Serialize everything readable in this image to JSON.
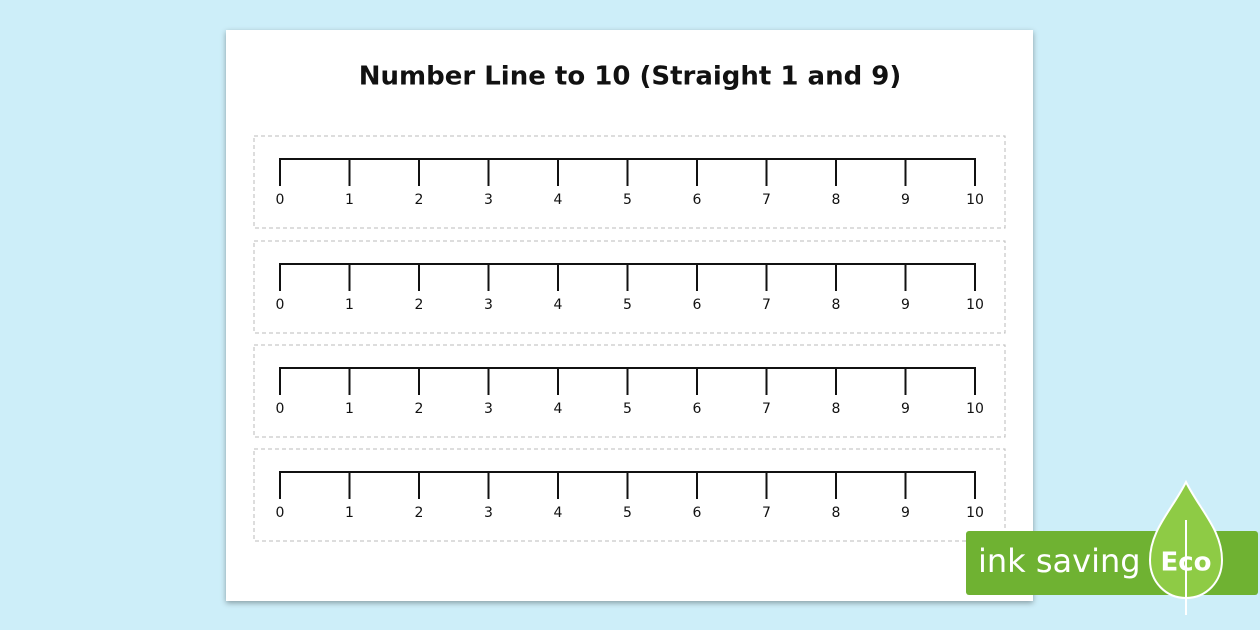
{
  "title": "Number Line to 10 (Straight 1 and 9)",
  "number_lines": [
    {
      "labels": [
        "0",
        "1",
        "2",
        "3",
        "4",
        "5",
        "6",
        "7",
        "8",
        "9",
        "10"
      ]
    },
    {
      "labels": [
        "0",
        "1",
        "2",
        "3",
        "4",
        "5",
        "6",
        "7",
        "8",
        "9",
        "10"
      ]
    },
    {
      "labels": [
        "0",
        "1",
        "2",
        "3",
        "4",
        "5",
        "6",
        "7",
        "8",
        "9",
        "10"
      ]
    },
    {
      "labels": [
        "0",
        "1",
        "2",
        "3",
        "4",
        "5",
        "6",
        "7",
        "8",
        "9",
        "10"
      ]
    }
  ],
  "badge": {
    "text": "ink saving",
    "eco": "Eco"
  }
}
